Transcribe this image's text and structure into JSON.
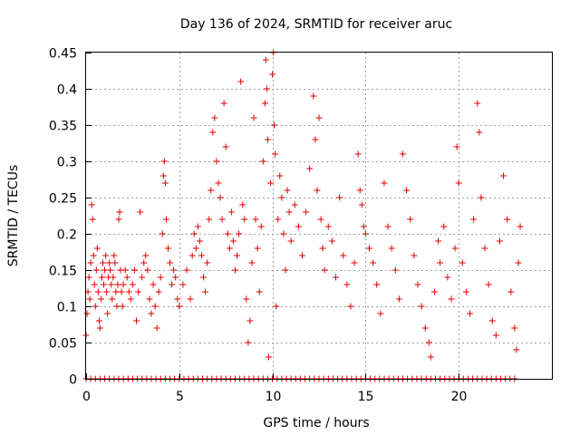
{
  "chart_data": {
    "type": "scatter",
    "title": "Day 136 of 2024, SRMTID for receiver aruc",
    "xlabel": "GPS time / hours",
    "ylabel": "SRMTID / TECUs",
    "xlim": [
      0,
      25
    ],
    "ylim": [
      0,
      0.45
    ],
    "grid": true,
    "marker": "plus",
    "color": "#e00000",
    "xticks": [
      0,
      5,
      10,
      15,
      20
    ],
    "yticks": [
      0,
      0.05,
      0.1,
      0.15,
      0.2,
      0.25,
      0.3,
      0.35,
      0.4,
      0.45
    ],
    "xtick_labels": [
      "0",
      "5",
      "10",
      "15",
      "20"
    ],
    "ytick_labels": [
      "0",
      "0.05",
      "0.1",
      "0.15",
      "0.2",
      "0.25",
      "0.3",
      "0.35",
      "0.4",
      "0.45"
    ],
    "series": [
      {
        "name": "SRMTID",
        "points": [
          [
            0.0,
            0.06
          ],
          [
            0.05,
            0.09
          ],
          [
            0.1,
            0.12
          ],
          [
            0.15,
            0.14
          ],
          [
            0.2,
            0.11
          ],
          [
            0.25,
            0.16
          ],
          [
            0.3,
            0.24
          ],
          [
            0.35,
            0.22
          ],
          [
            0.4,
            0.17
          ],
          [
            0.45,
            0.13
          ],
          [
            0.5,
            0.1
          ],
          [
            0.55,
            0.15
          ],
          [
            0.6,
            0.18
          ],
          [
            0.65,
            0.12
          ],
          [
            0.7,
            0.08
          ],
          [
            0.75,
            0.07
          ],
          [
            0.8,
            0.11
          ],
          [
            0.85,
            0.14
          ],
          [
            0.9,
            0.16
          ],
          [
            0.95,
            0.13
          ],
          [
            1.0,
            0.15
          ],
          [
            1.05,
            0.17
          ],
          [
            1.1,
            0.12
          ],
          [
            1.15,
            0.09
          ],
          [
            1.2,
            0.14
          ],
          [
            1.25,
            0.16
          ],
          [
            1.3,
            0.15
          ],
          [
            1.35,
            0.13
          ],
          [
            1.4,
            0.11
          ],
          [
            1.45,
            0.14
          ],
          [
            1.5,
            0.17
          ],
          [
            1.55,
            0.16
          ],
          [
            1.6,
            0.12
          ],
          [
            1.65,
            0.1
          ],
          [
            1.7,
            0.13
          ],
          [
            1.75,
            0.22
          ],
          [
            1.8,
            0.23
          ],
          [
            1.85,
            0.15
          ],
          [
            1.9,
            0.12
          ],
          [
            1.95,
            0.1
          ],
          [
            2.0,
            0.13
          ],
          [
            2.1,
            0.15
          ],
          [
            2.2,
            0.14
          ],
          [
            2.3,
            0.12
          ],
          [
            2.4,
            0.11
          ],
          [
            2.5,
            0.13
          ],
          [
            2.6,
            0.15
          ],
          [
            2.7,
            0.08
          ],
          [
            2.8,
            0.12
          ],
          [
            2.9,
            0.23
          ],
          [
            3.0,
            0.14
          ],
          [
            3.1,
            0.16
          ],
          [
            3.2,
            0.17
          ],
          [
            3.3,
            0.15
          ],
          [
            3.4,
            0.11
          ],
          [
            3.5,
            0.09
          ],
          [
            3.6,
            0.13
          ],
          [
            3.7,
            0.1
          ],
          [
            3.8,
            0.07
          ],
          [
            3.9,
            0.12
          ],
          [
            4.0,
            0.14
          ],
          [
            4.1,
            0.2
          ],
          [
            4.15,
            0.28
          ],
          [
            4.2,
            0.3
          ],
          [
            4.25,
            0.27
          ],
          [
            4.3,
            0.22
          ],
          [
            4.4,
            0.18
          ],
          [
            4.5,
            0.16
          ],
          [
            4.6,
            0.13
          ],
          [
            4.7,
            0.15
          ],
          [
            4.8,
            0.14
          ],
          [
            4.9,
            0.11
          ],
          [
            5.0,
            0.1
          ],
          [
            5.2,
            0.13
          ],
          [
            5.4,
            0.15
          ],
          [
            5.6,
            0.11
          ],
          [
            5.7,
            0.17
          ],
          [
            5.8,
            0.2
          ],
          [
            5.9,
            0.18
          ],
          [
            6.0,
            0.21
          ],
          [
            6.1,
            0.19
          ],
          [
            6.2,
            0.17
          ],
          [
            6.3,
            0.14
          ],
          [
            6.4,
            0.12
          ],
          [
            6.5,
            0.16
          ],
          [
            6.6,
            0.22
          ],
          [
            6.7,
            0.26
          ],
          [
            6.8,
            0.34
          ],
          [
            6.9,
            0.36
          ],
          [
            7.0,
            0.3
          ],
          [
            7.1,
            0.27
          ],
          [
            7.2,
            0.25
          ],
          [
            7.3,
            0.22
          ],
          [
            7.4,
            0.38
          ],
          [
            7.5,
            0.32
          ],
          [
            7.6,
            0.2
          ],
          [
            7.7,
            0.18
          ],
          [
            7.8,
            0.23
          ],
          [
            7.9,
            0.19
          ],
          [
            8.0,
            0.15
          ],
          [
            8.1,
            0.17
          ],
          [
            8.2,
            0.2
          ],
          [
            8.3,
            0.41
          ],
          [
            8.4,
            0.24
          ],
          [
            8.5,
            0.22
          ],
          [
            8.6,
            0.11
          ],
          [
            8.7,
            0.05
          ],
          [
            8.8,
            0.08
          ],
          [
            8.9,
            0.16
          ],
          [
            9.0,
            0.36
          ],
          [
            9.1,
            0.22
          ],
          [
            9.2,
            0.18
          ],
          [
            9.3,
            0.12
          ],
          [
            9.4,
            0.21
          ],
          [
            9.5,
            0.3
          ],
          [
            9.6,
            0.38
          ],
          [
            9.65,
            0.44
          ],
          [
            9.7,
            0.4
          ],
          [
            9.75,
            0.33
          ],
          [
            9.8,
            0.03
          ],
          [
            9.9,
            0.27
          ],
          [
            10.0,
            0.42
          ],
          [
            10.05,
            0.45
          ],
          [
            10.1,
            0.35
          ],
          [
            10.15,
            0.31
          ],
          [
            10.2,
            0.1
          ],
          [
            10.3,
            0.22
          ],
          [
            10.4,
            0.28
          ],
          [
            10.5,
            0.25
          ],
          [
            10.6,
            0.2
          ],
          [
            10.7,
            0.15
          ],
          [
            10.8,
            0.26
          ],
          [
            10.9,
            0.23
          ],
          [
            11.0,
            0.19
          ],
          [
            11.2,
            0.24
          ],
          [
            11.4,
            0.21
          ],
          [
            11.6,
            0.17
          ],
          [
            11.8,
            0.23
          ],
          [
            12.0,
            0.29
          ],
          [
            12.2,
            0.39
          ],
          [
            12.3,
            0.33
          ],
          [
            12.4,
            0.26
          ],
          [
            12.5,
            0.36
          ],
          [
            12.6,
            0.22
          ],
          [
            12.7,
            0.18
          ],
          [
            12.8,
            0.15
          ],
          [
            13.0,
            0.21
          ],
          [
            13.2,
            0.19
          ],
          [
            13.4,
            0.14
          ],
          [
            13.6,
            0.25
          ],
          [
            13.8,
            0.17
          ],
          [
            14.0,
            0.13
          ],
          [
            14.2,
            0.1
          ],
          [
            14.4,
            0.16
          ],
          [
            14.6,
            0.31
          ],
          [
            14.7,
            0.26
          ],
          [
            14.8,
            0.24
          ],
          [
            14.9,
            0.21
          ],
          [
            15.0,
            0.2
          ],
          [
            15.2,
            0.18
          ],
          [
            15.4,
            0.16
          ],
          [
            15.6,
            0.13
          ],
          [
            15.8,
            0.09
          ],
          [
            16.0,
            0.27
          ],
          [
            16.2,
            0.21
          ],
          [
            16.4,
            0.18
          ],
          [
            16.6,
            0.15
          ],
          [
            16.8,
            0.11
          ],
          [
            17.0,
            0.31
          ],
          [
            17.2,
            0.26
          ],
          [
            17.4,
            0.22
          ],
          [
            17.6,
            0.17
          ],
          [
            17.8,
            0.13
          ],
          [
            18.0,
            0.1
          ],
          [
            18.2,
            0.07
          ],
          [
            18.4,
            0.05
          ],
          [
            18.5,
            0.03
          ],
          [
            18.7,
            0.12
          ],
          [
            18.9,
            0.19
          ],
          [
            19.0,
            0.16
          ],
          [
            19.2,
            0.21
          ],
          [
            19.4,
            0.14
          ],
          [
            19.6,
            0.11
          ],
          [
            19.8,
            0.18
          ],
          [
            19.9,
            0.32
          ],
          [
            20.0,
            0.27
          ],
          [
            20.2,
            0.16
          ],
          [
            20.4,
            0.12
          ],
          [
            20.6,
            0.09
          ],
          [
            20.8,
            0.22
          ],
          [
            21.0,
            0.38
          ],
          [
            21.1,
            0.34
          ],
          [
            21.2,
            0.25
          ],
          [
            21.4,
            0.18
          ],
          [
            21.6,
            0.13
          ],
          [
            21.8,
            0.08
          ],
          [
            22.0,
            0.06
          ],
          [
            22.2,
            0.19
          ],
          [
            22.4,
            0.28
          ],
          [
            22.6,
            0.22
          ],
          [
            22.8,
            0.12
          ],
          [
            23.0,
            0.07
          ],
          [
            23.1,
            0.04
          ],
          [
            23.2,
            0.16
          ],
          [
            23.3,
            0.21
          ]
        ]
      }
    ]
  }
}
